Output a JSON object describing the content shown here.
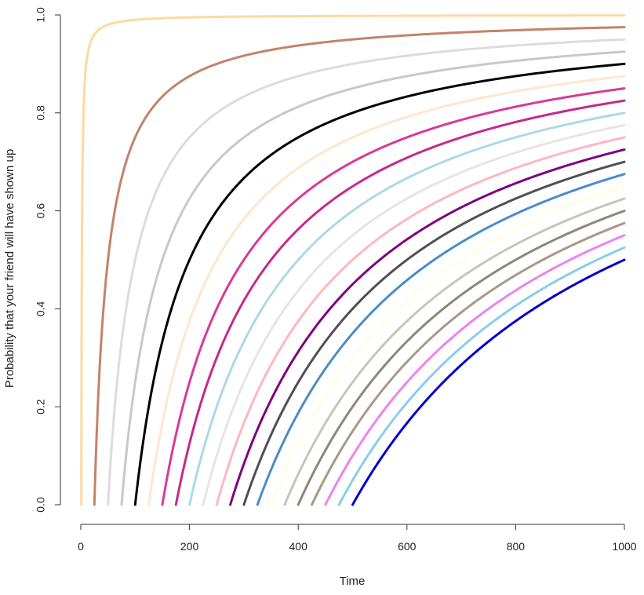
{
  "chart_data": {
    "type": "line",
    "title": "",
    "xlabel": "Time",
    "ylabel": "Probability that your friend will have shown up",
    "xlim": [
      0,
      1000
    ],
    "ylim": [
      0,
      1
    ],
    "xticks": [
      "0",
      "200",
      "400",
      "600",
      "800",
      "1000"
    ],
    "yticks": [
      "0.0",
      "0.2",
      "0.4",
      "0.6",
      "0.8",
      "1.0"
    ],
    "grid": false,
    "legend": "none",
    "model": "y = 1 - start / x for x >= start",
    "series": [
      {
        "start": 1,
        "color": "#FFD8A0",
        "y_at_1000": 0.999
      },
      {
        "start": 25,
        "color": "#C4826A",
        "y_at_1000": 0.975
      },
      {
        "start": 50,
        "color": "#DCDCDC",
        "y_at_1000": 0.95
      },
      {
        "start": 75,
        "color": "#C8C8C8",
        "y_at_1000": 0.925
      },
      {
        "start": 100,
        "color": "#000000",
        "y_at_1000": 0.9
      },
      {
        "start": 125,
        "color": "#FFE6CC",
        "y_at_1000": 0.875
      },
      {
        "start": 150,
        "color": "#D8399A",
        "y_at_1000": 0.85
      },
      {
        "start": 175,
        "color": "#C42A8C",
        "y_at_1000": 0.825
      },
      {
        "start": 200,
        "color": "#ADD8E6",
        "y_at_1000": 0.8
      },
      {
        "start": 225,
        "color": "#E5E5E5",
        "y_at_1000": 0.775
      },
      {
        "start": 250,
        "color": "#FFB6C1",
        "y_at_1000": 0.75
      },
      {
        "start": 275,
        "color": "#800080",
        "y_at_1000": 0.725
      },
      {
        "start": 300,
        "color": "#505050",
        "y_at_1000": 0.7
      },
      {
        "start": 325,
        "color": "#4A8CC8",
        "y_at_1000": 0.675
      },
      {
        "start": 350,
        "color": "#FFFFE0",
        "y_at_1000": 0.65
      },
      {
        "start": 375,
        "color": "#C0C8B8",
        "y_at_1000": 0.625
      },
      {
        "start": 400,
        "color": "#8B8878",
        "y_at_1000": 0.6
      },
      {
        "start": 425,
        "color": "#A89888",
        "y_at_1000": 0.575
      },
      {
        "start": 450,
        "color": "#EE82EE",
        "y_at_1000": 0.55
      },
      {
        "start": 475,
        "color": "#87CEEB",
        "y_at_1000": 0.525
      },
      {
        "start": 500,
        "color": "#0000CD",
        "y_at_1000": 0.5
      }
    ]
  }
}
